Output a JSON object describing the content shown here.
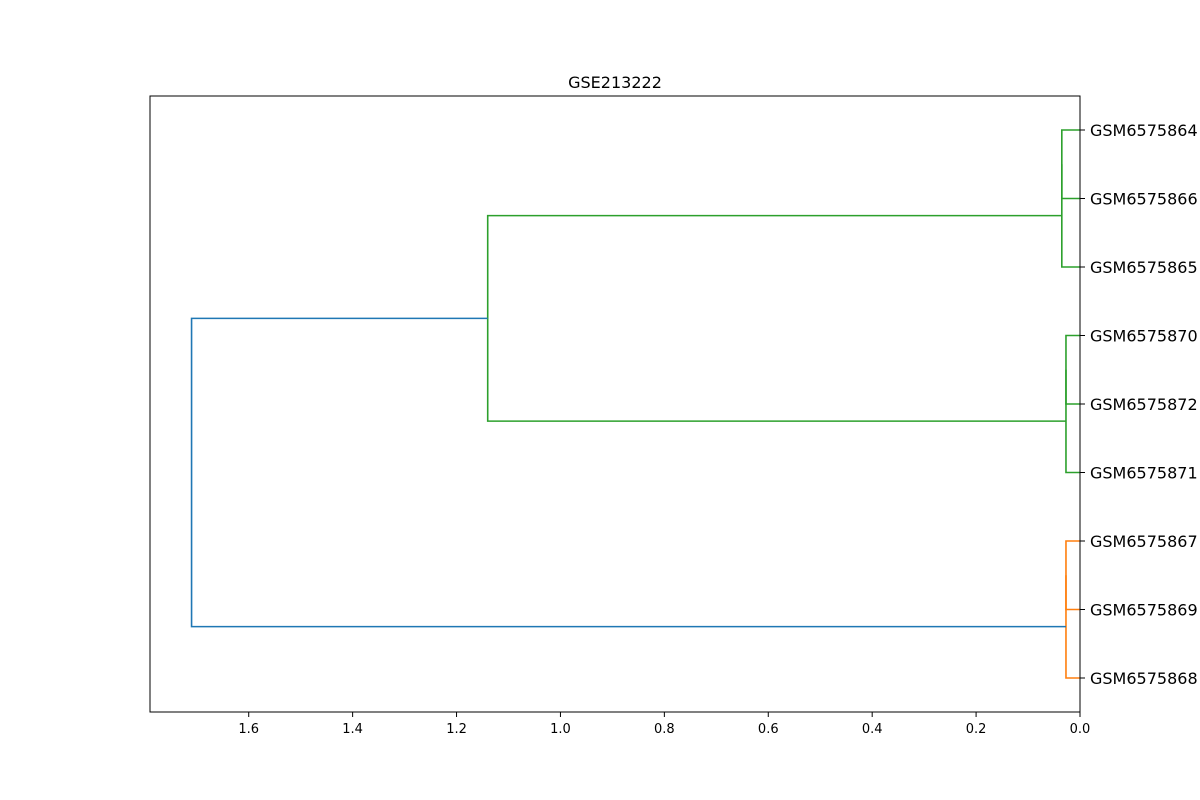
{
  "chart_data": {
    "type": "dendrogram",
    "title": "GSE213222",
    "orientation": "left",
    "xlabel": "",
    "ylabel": "",
    "xlim": [
      1.79,
      0.0
    ],
    "xticks": [
      1.6,
      1.4,
      1.2,
      1.0,
      0.8,
      0.6,
      0.4,
      0.2,
      0.0
    ],
    "xtick_labels": [
      "1.6",
      "1.4",
      "1.2",
      "1.0",
      "0.8",
      "0.6",
      "0.4",
      "0.2",
      "0.0"
    ],
    "grid": false,
    "leaves": [
      "GSM6575864",
      "GSM6575866",
      "GSM6575865",
      "GSM6575870",
      "GSM6575872",
      "GSM6575871",
      "GSM6575867",
      "GSM6575869",
      "GSM6575868"
    ],
    "merges": [
      {
        "left": 0,
        "right": 1,
        "height": 0.035,
        "color": "#2ca02c"
      },
      {
        "left": 9,
        "right": 2,
        "height": 0.035,
        "color": "#2ca02c"
      },
      {
        "left": 3,
        "right": 4,
        "height": 0.027,
        "color": "#2ca02c"
      },
      {
        "left": 11,
        "right": 5,
        "height": 0.027,
        "color": "#2ca02c"
      },
      {
        "left": 6,
        "right": 7,
        "height": 0.027,
        "color": "#ff7f0e"
      },
      {
        "left": 13,
        "right": 8,
        "height": 0.027,
        "color": "#ff7f0e"
      },
      {
        "left": 10,
        "right": 12,
        "height": 1.14,
        "color": "#2ca02c"
      },
      {
        "left": 15,
        "right": 14,
        "height": 1.71,
        "color": "#1f77b4"
      }
    ],
    "colors": {
      "cluster_green": "#2ca02c",
      "cluster_orange": "#ff7f0e",
      "root_blue": "#1f77b4"
    }
  }
}
